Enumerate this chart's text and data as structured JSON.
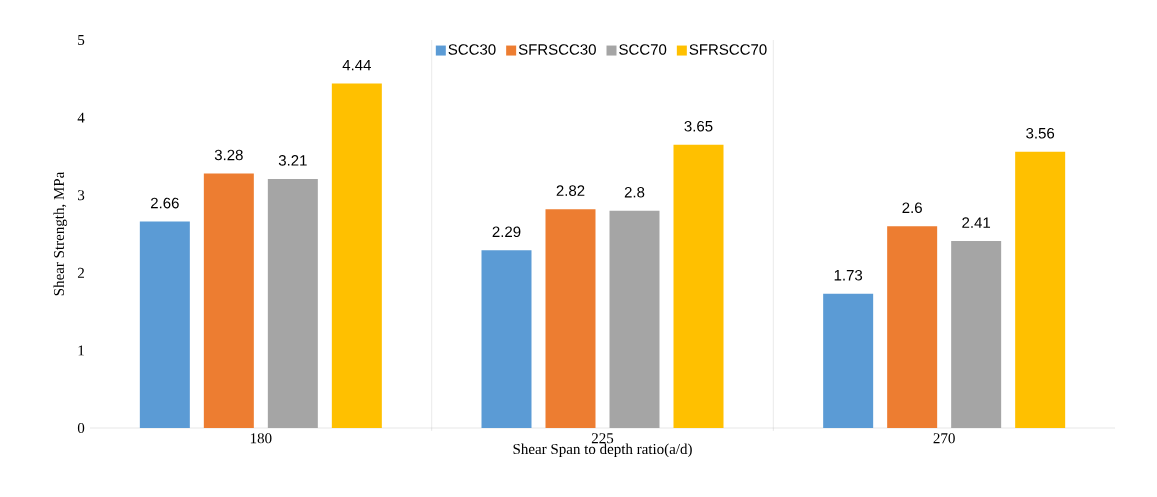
{
  "chart_data": {
    "type": "bar",
    "xlabel": "Shear Span to depth ratio(a/d)",
    "ylabel": "Shear Strength, MPa",
    "categories": [
      "180",
      "225",
      "270"
    ],
    "series": [
      {
        "name": "SCC30",
        "color": "#5b9bd5",
        "values": [
          2.66,
          2.29,
          1.73
        ]
      },
      {
        "name": "SFRSCC30",
        "color": "#ed7d31",
        "values": [
          3.28,
          2.82,
          2.6
        ]
      },
      {
        "name": "SCC70",
        "color": "#a5a5a5",
        "values": [
          3.21,
          2.8,
          2.41
        ]
      },
      {
        "name": "SFRSCC70",
        "color": "#ffc000",
        "values": [
          4.44,
          3.65,
          3.56
        ]
      }
    ],
    "ylim": [
      0,
      5
    ],
    "yticks": [
      0,
      1,
      2,
      3,
      4,
      5
    ],
    "grid": "x",
    "legend": "top",
    "data_labels": true
  }
}
